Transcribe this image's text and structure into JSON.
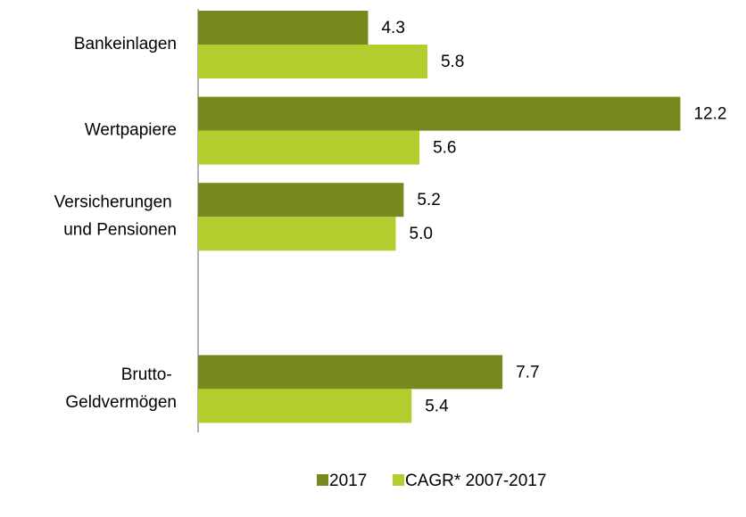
{
  "chart_data": {
    "type": "hbar",
    "categories": [
      "Bankeinlagen",
      "Wertpapiere",
      "Versicherungen\nund Pensionen",
      null,
      "Brutto-\nGeldvermögen"
    ],
    "series": [
      {
        "name": "2017",
        "color": "#76891f",
        "values": [
          4.3,
          12.2,
          5.2,
          null,
          7.7
        ],
        "value_labels": [
          "4.3",
          "12.2",
          "5.2",
          null,
          "7.7"
        ]
      },
      {
        "name": "CAGR* 2007-2017",
        "color": "#b3cc2e",
        "values": [
          5.8,
          5.6,
          5.0,
          null,
          5.4
        ],
        "value_labels": [
          "5.8",
          "5.6",
          "5.0",
          null,
          "5.4"
        ]
      }
    ],
    "xlim": [
      0,
      14
    ]
  }
}
